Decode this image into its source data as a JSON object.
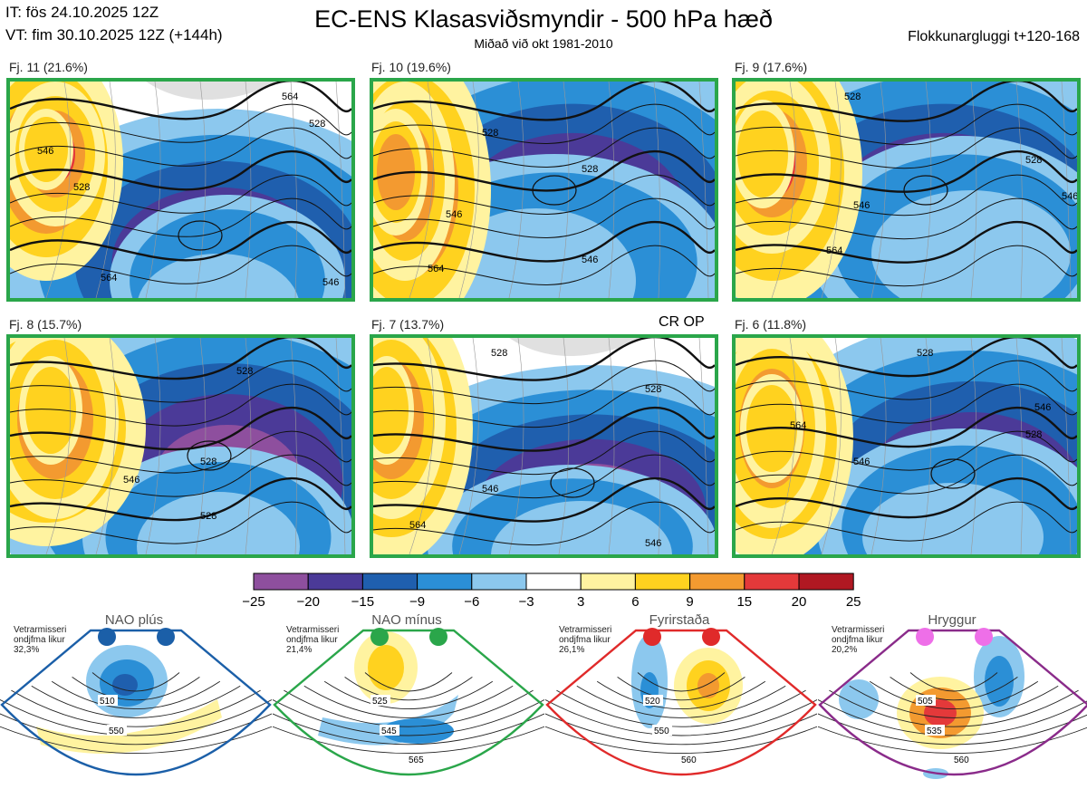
{
  "header": {
    "it": "IT: fös 24.10.2025 12Z",
    "vt": "VT: fim 30.10.2025 12Z  (+144h)",
    "title": "EC-ENS Klasasviðsmyndir - 500 hPa hæð",
    "subtitle": "Miðað við okt 1981-2010",
    "window": "Flokkunargluggi t+120-168"
  },
  "panels": [
    {
      "label": "Fj. 11 (21.6%)",
      "contours": [
        "546",
        "528",
        "564",
        "528",
        "564",
        "546"
      ]
    },
    {
      "label": "Fj. 10 (19.6%)",
      "contours": [
        "528",
        "528",
        "546",
        "546",
        "564"
      ]
    },
    {
      "label": "Fj. 9 (17.6%)",
      "contours": [
        "528",
        "546",
        "564",
        "528",
        "546"
      ]
    },
    {
      "label": "Fj. 8 (15.7%)",
      "contours": [
        "528",
        "546",
        "528",
        "528",
        "546"
      ]
    },
    {
      "label": "Fj. 7 (13.7%)",
      "contours": [
        "528",
        "528",
        "546",
        "564",
        "546"
      ]
    },
    {
      "label": "Fj. 6 (11.8%)",
      "contours": [
        "528",
        "546",
        "564",
        "528",
        "546"
      ]
    }
  ],
  "annotation": "CR OP",
  "chart_data": {
    "type": "heatmap",
    "title": "EC-ENS Klasasviðsmyndir - 500 hPa hæð",
    "colorbar": {
      "ticks": [
        "−25",
        "−20",
        "−15",
        "−9",
        "−6",
        "−3",
        "3",
        "6",
        "9",
        "15",
        "20",
        "25"
      ],
      "values": [
        -25,
        -20,
        -15,
        -9,
        -6,
        -3,
        3,
        6,
        9,
        15,
        20,
        25
      ],
      "colors": [
        "#8e4f9e",
        "#4b3a98",
        "#1f5fae",
        "#2b8fd6",
        "#8cc8ee",
        "#ffffff",
        "#fff3a0",
        "#ffd21f",
        "#f39a30",
        "#e4393a",
        "#b01822"
      ]
    },
    "clusters": [
      {
        "name": "Fj. 11",
        "probability": 21.6
      },
      {
        "name": "Fj. 10",
        "probability": 19.6
      },
      {
        "name": "Fj. 9",
        "probability": 17.6
      },
      {
        "name": "Fj. 8",
        "probability": 15.7
      },
      {
        "name": "Fj. 7",
        "probability": 13.7
      },
      {
        "name": "Fj. 6",
        "probability": 11.8
      }
    ]
  },
  "regimes": [
    {
      "name": "NAO plús",
      "note": "Vetrarmisseri ondjfma likur 32,3%",
      "color": "#1b5fa8",
      "dot": "#1b5fa8",
      "contours": [
        "510",
        "550"
      ]
    },
    {
      "name": "NAO mínus",
      "note": "Vetrarmisseri ondjfma likur 21,4%",
      "color": "#2aa64a",
      "dot": "#2aa64a",
      "contours": [
        "525",
        "545",
        "565"
      ]
    },
    {
      "name": "Fyrirstaða",
      "note": "Vetrarmisseri ondjfma likur 26,1%",
      "color": "#e02a2a",
      "dot": "#e02a2a",
      "contours": [
        "520",
        "550",
        "560"
      ]
    },
    {
      "name": "Hryggur",
      "note": "Vetrarmisseri ondjfma likur 20,2%",
      "color": "#8a2b8a",
      "dot": "#ee6fe8",
      "contours": [
        "505",
        "535",
        "560"
      ]
    }
  ]
}
